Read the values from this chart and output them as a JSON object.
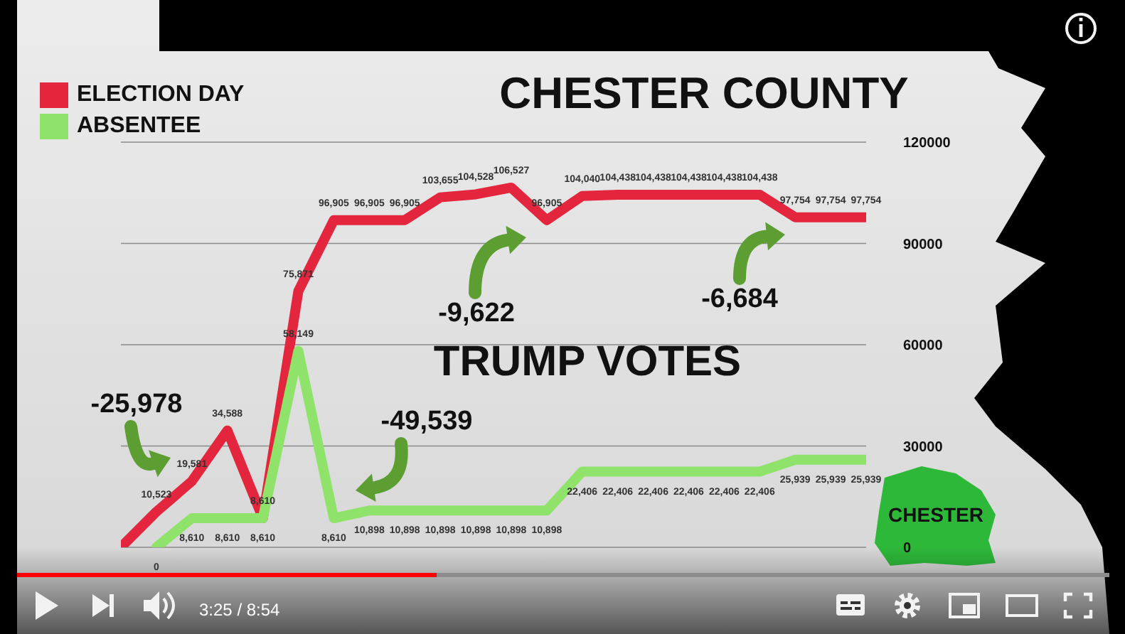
{
  "chart_data": {
    "type": "line",
    "title": "CHESTER COUNTY",
    "categories": [
      null,
      null,
      null,
      null,
      null,
      null,
      null,
      null,
      null,
      null,
      null,
      null,
      null,
      null,
      null,
      null,
      null,
      null,
      null,
      null,
      null,
      null
    ],
    "series": [
      {
        "name": "ELECTION DAY",
        "color": "#e3263d",
        "values": [
          0,
          10523,
          19581,
          34588,
          8610,
          75871,
          96905,
          96905,
          96905,
          103655,
          104528,
          106527,
          96905,
          104040,
          104438,
          104438,
          104438,
          104438,
          104438,
          97754,
          97754,
          97754
        ],
        "value_labels": [
          null,
          "10,523",
          "19,581",
          "34,588",
          "8,610",
          "75,871",
          "96,905",
          "96,905",
          "96,905",
          "103,655",
          "104,528",
          "106,527",
          "96,905",
          "104,040",
          "104,438",
          "104,438",
          "104,438",
          "104,438",
          "104,438",
          "97,754",
          "97,754",
          "97,754"
        ]
      },
      {
        "name": "ABSENTEE",
        "color": "#8fe36b",
        "values": [
          null,
          0,
          8610,
          8610,
          8610,
          58149,
          8610,
          10898,
          10898,
          10898,
          10898,
          10898,
          10898,
          22406,
          22406,
          22406,
          22406,
          22406,
          22406,
          25939,
          25939,
          25939
        ],
        "value_labels": [
          null,
          "0",
          "8,610",
          "8,610",
          "8,610",
          "58,149",
          "8,610",
          "10,898",
          "10,898",
          "10,898",
          "10,898",
          "10,898",
          "10,898",
          "22,406",
          "22,406",
          "22,406",
          "22,406",
          "22,406",
          "22,406",
          "25,939",
          "25,939",
          "25,939"
        ]
      }
    ],
    "ylim": [
      0,
      120000
    ],
    "yticks": [
      0,
      30000,
      60000,
      90000,
      120000
    ],
    "grid": "y",
    "legend": "top left",
    "marker": "none",
    "tick_labels": "y",
    "annotations": [
      "-25,978",
      "-9,622",
      "-6,684",
      "-49,539",
      "TRUMP VOTES",
      "CHESTER",
      "3:25 / 8:54"
    ]
  }
}
